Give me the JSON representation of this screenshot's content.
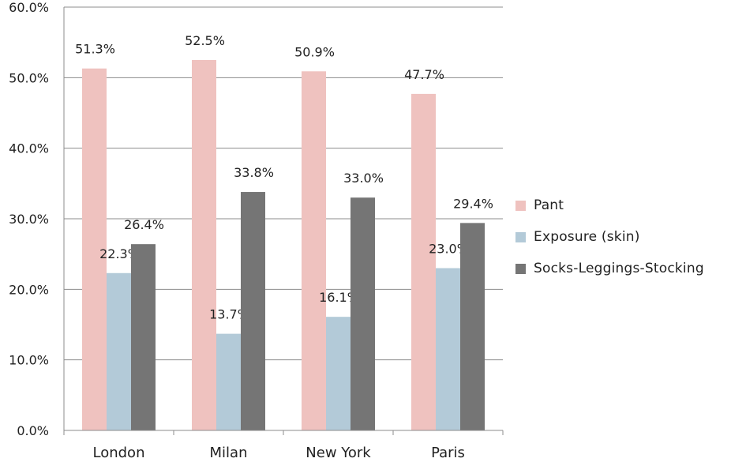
{
  "chart_data": {
    "type": "bar",
    "title": "",
    "xlabel": "",
    "ylabel": "",
    "categories": [
      "London",
      "Milan",
      "New York",
      "Paris"
    ],
    "ylim": [
      0,
      60
    ],
    "ytick_values": [
      0,
      10,
      20,
      30,
      40,
      50,
      60
    ],
    "ytick_labels": [
      "0.0%",
      "10.0%",
      "20.0%",
      "30.0%",
      "40.0%",
      "50.0%",
      "60.0%"
    ],
    "grid": true,
    "legend_position": "right",
    "series": [
      {
        "name": "Pant",
        "color": "#efc2bf",
        "values": [
          51.3,
          52.5,
          50.9,
          47.7
        ],
        "labels": [
          "51.3%",
          "52.5%",
          "50.9%",
          "47.7%"
        ]
      },
      {
        "name": "Exposure (skin)",
        "color": "#b3cad8",
        "values": [
          22.3,
          13.7,
          16.1,
          23.0
        ],
        "labels": [
          "22.3%",
          "13.7%",
          "16.1%",
          "23.0%"
        ]
      },
      {
        "name": "Socks-Leggings-Stocking",
        "color": "#757575",
        "values": [
          26.4,
          33.8,
          33.0,
          29.4
        ],
        "labels": [
          "26.4%",
          "33.8%",
          "33.0%",
          "29.4%"
        ]
      }
    ]
  }
}
